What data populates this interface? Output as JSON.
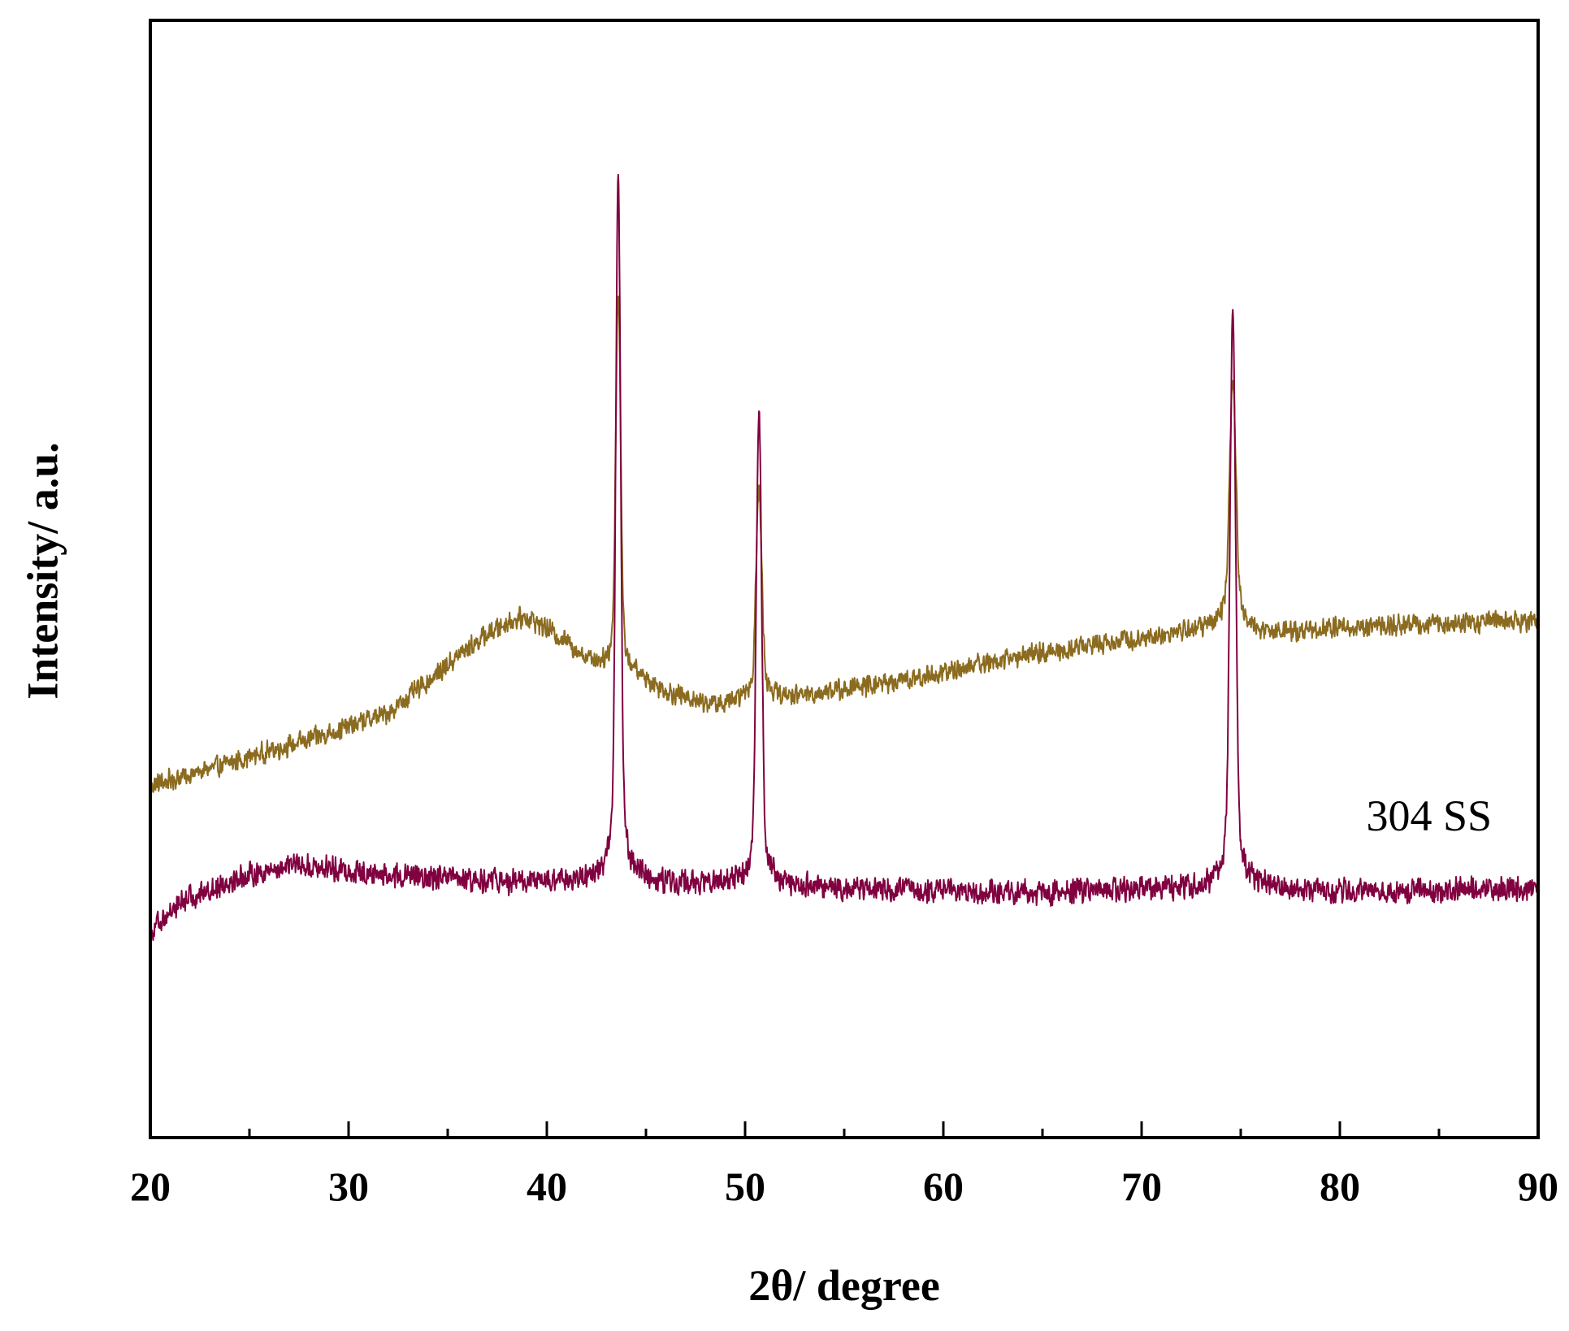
{
  "chart_data": {
    "type": "line",
    "title": "",
    "xlabel": "2θ/ degree",
    "ylabel": "Intensity/ a.u.",
    "xlim": [
      20,
      90
    ],
    "ylim": [
      0,
      100
    ],
    "x_major_ticks": [
      20,
      30,
      40,
      50,
      60,
      70,
      80,
      90
    ],
    "x_minor_ticks": [
      25,
      35,
      45,
      55,
      65,
      75,
      85
    ],
    "x_tick_labels": [
      "20",
      "30",
      "40",
      "50",
      "60",
      "70",
      "80",
      "90"
    ],
    "y_ticks_shown": false,
    "grid": false,
    "legend": "none",
    "annotations": [
      {
        "text": "304 SS",
        "x": 84.5,
        "y": 27.5,
        "anchor": "series-1"
      }
    ],
    "series": [
      {
        "color": "#8b6b1f",
        "noise": 1.1,
        "points": [
          [
            20,
            31.5
          ],
          [
            22,
            32.5
          ],
          [
            24,
            33.5
          ],
          [
            26,
            34.6
          ],
          [
            28,
            35.6
          ],
          [
            30,
            36.8
          ],
          [
            32,
            38.0
          ],
          [
            34,
            40.8
          ],
          [
            36,
            43.8
          ],
          [
            37,
            45.0
          ],
          [
            38,
            46.1
          ],
          [
            39,
            46.6
          ],
          [
            40,
            45.5
          ],
          [
            41,
            44.3
          ],
          [
            42,
            42.8
          ],
          [
            43,
            41.9
          ],
          [
            44,
            41.5
          ],
          [
            45,
            40.8
          ],
          [
            46,
            39.9
          ],
          [
            47,
            39.3
          ],
          [
            48,
            38.9
          ],
          [
            49,
            38.6
          ],
          [
            50,
            39.2
          ],
          [
            51,
            39.4
          ],
          [
            52,
            39.3
          ],
          [
            54,
            39.9
          ],
          [
            56,
            40.4
          ],
          [
            58,
            40.9
          ],
          [
            60,
            41.6
          ],
          [
            62,
            42.5
          ],
          [
            64,
            43.1
          ],
          [
            66,
            43.6
          ],
          [
            68,
            44.3
          ],
          [
            70,
            44.7
          ],
          [
            72,
            45.2
          ],
          [
            74,
            45.8
          ],
          [
            76,
            45.2
          ],
          [
            78,
            45.4
          ],
          [
            80,
            45.6
          ],
          [
            82,
            45.7
          ],
          [
            84,
            45.9
          ],
          [
            86,
            46.0
          ],
          [
            88,
            46.2
          ],
          [
            90,
            46.3
          ]
        ],
        "peaks": [
          {
            "x": 43.6,
            "height": 36.5,
            "width": 0.12
          },
          {
            "x": 50.7,
            "height": 20.0,
            "width": 0.14
          },
          {
            "x": 74.6,
            "height": 23.5,
            "width": 0.16
          }
        ]
      },
      {
        "color": "#800040",
        "noise": 1.3,
        "points": [
          [
            20,
            18.5
          ],
          [
            21,
            20.3
          ],
          [
            22,
            21.5
          ],
          [
            23,
            22.2
          ],
          [
            24,
            23.0
          ],
          [
            25,
            23.5
          ],
          [
            26,
            23.9
          ],
          [
            27,
            24.4
          ],
          [
            28,
            24.3
          ],
          [
            30,
            23.9
          ],
          [
            32,
            23.4
          ],
          [
            34,
            23.2
          ],
          [
            36,
            23.0
          ],
          [
            38,
            22.9
          ],
          [
            40,
            22.8
          ],
          [
            42,
            22.9
          ],
          [
            44,
            23.1
          ],
          [
            46,
            22.8
          ],
          [
            48,
            22.6
          ],
          [
            50,
            22.6
          ],
          [
            52,
            22.5
          ],
          [
            55,
            22.3
          ],
          [
            58,
            22.1
          ],
          [
            60,
            22.2
          ],
          [
            62,
            22.0
          ],
          [
            64,
            21.9
          ],
          [
            66,
            22.0
          ],
          [
            68,
            22.1
          ],
          [
            70,
            22.2
          ],
          [
            72,
            22.2
          ],
          [
            74,
            22.3
          ],
          [
            76,
            22.3
          ],
          [
            78,
            22.2
          ],
          [
            80,
            22.1
          ],
          [
            82,
            22.0
          ],
          [
            84,
            22.1
          ],
          [
            86,
            22.1
          ],
          [
            88,
            22.2
          ],
          [
            90,
            22.3
          ]
        ],
        "peaks": [
          {
            "x": 43.6,
            "height": 67.5,
            "width": 0.12
          },
          {
            "x": 50.7,
            "height": 46.0,
            "width": 0.13
          },
          {
            "x": 74.6,
            "height": 55.0,
            "width": 0.14
          }
        ]
      }
    ]
  }
}
